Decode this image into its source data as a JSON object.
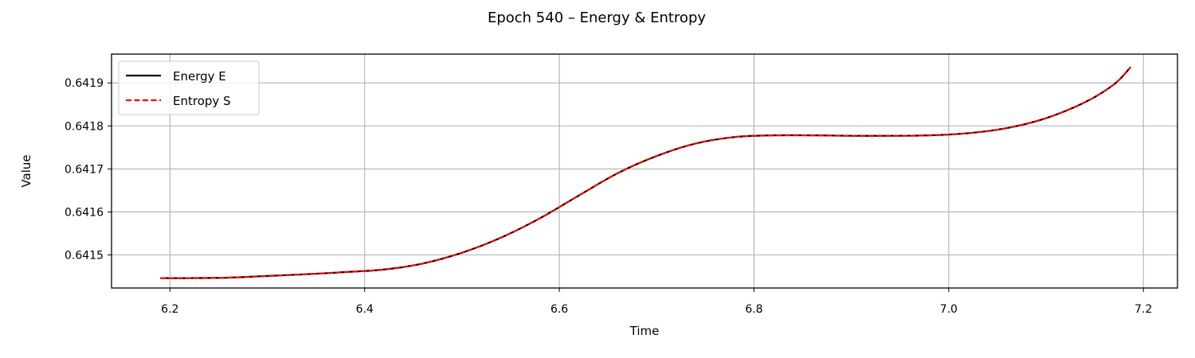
{
  "chart_data": {
    "type": "line",
    "title": "Epoch 540 – Energy & Entropy",
    "xlabel": "Time",
    "ylabel": "Value",
    "xlim": [
      6.14,
      7.235
    ],
    "ylim": [
      0.641423,
      0.641967
    ],
    "xticks": [
      6.2,
      6.4,
      6.6,
      6.8,
      7.0,
      7.2
    ],
    "xtick_labels": [
      "6.2",
      "6.4",
      "6.6",
      "6.8",
      "7.0",
      "7.2"
    ],
    "yticks": [
      0.6415,
      0.6416,
      0.6417,
      0.6418,
      0.6419
    ],
    "ytick_labels": [
      "0.6415",
      "0.6416",
      "0.6417",
      "0.6418",
      "0.6419"
    ],
    "grid": true,
    "legend_position": "top-left",
    "x": [
      6.19,
      6.22,
      6.26,
      6.3,
      6.34,
      6.38,
      6.42,
      6.46,
      6.5,
      6.54,
      6.58,
      6.62,
      6.66,
      6.7,
      6.74,
      6.78,
      6.82,
      6.86,
      6.9,
      6.94,
      6.98,
      7.02,
      7.06,
      7.1,
      7.14,
      7.17,
      7.187
    ],
    "series": [
      {
        "name": "Energy E",
        "color": "#000000",
        "style": "solid",
        "values": [
          0.641446,
          0.641446,
          0.641447,
          0.641451,
          0.641455,
          0.64146,
          0.641466,
          0.64148,
          0.641505,
          0.64154,
          0.641585,
          0.641638,
          0.64169,
          0.64173,
          0.641759,
          0.641774,
          0.641778,
          0.641778,
          0.641777,
          0.641777,
          0.641778,
          0.641783,
          0.641795,
          0.641818,
          0.641855,
          0.641897,
          0.641937
        ]
      },
      {
        "name": "Entropy S",
        "color": "#ff0000",
        "style": "dashed",
        "values": [
          0.641446,
          0.641446,
          0.641447,
          0.641451,
          0.641455,
          0.64146,
          0.641466,
          0.64148,
          0.641505,
          0.64154,
          0.641585,
          0.641638,
          0.64169,
          0.64173,
          0.641759,
          0.641774,
          0.641778,
          0.641778,
          0.641777,
          0.641777,
          0.641778,
          0.641783,
          0.641795,
          0.641818,
          0.641855,
          0.641897,
          0.641937
        ]
      }
    ]
  }
}
